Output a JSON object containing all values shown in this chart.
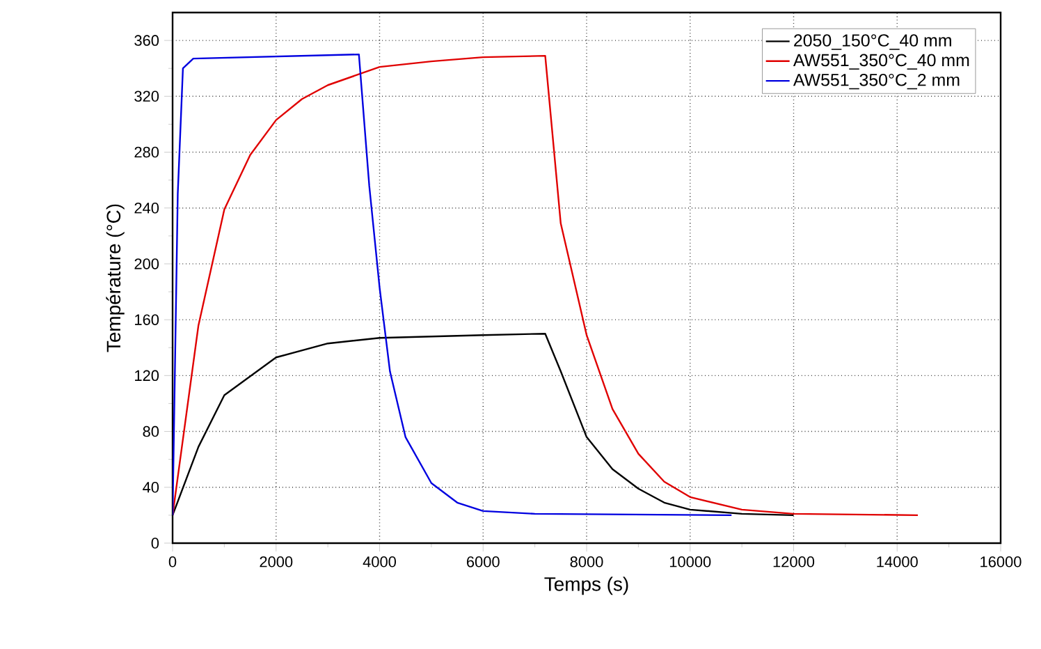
{
  "chart_data": {
    "type": "line",
    "xlabel": "Temps (s)",
    "ylabel": "Température (°C)",
    "xlim": [
      0,
      16000
    ],
    "ylim": [
      0,
      380
    ],
    "xticks": [
      0,
      2000,
      4000,
      6000,
      8000,
      10000,
      12000,
      14000,
      16000
    ],
    "yticks": [
      0,
      40,
      80,
      120,
      160,
      200,
      240,
      280,
      320,
      360
    ],
    "grid": true,
    "legend": "top right",
    "line_style": "solid",
    "marker": "none",
    "series": [
      {
        "name": "2050_150°C_40 mm",
        "color": "#000000",
        "x": [
          0,
          500,
          1000,
          2000,
          3000,
          4000,
          6000,
          7200,
          7500,
          8000,
          8500,
          9000,
          9500,
          10000,
          11000,
          12000
        ],
        "values": [
          20,
          69,
          106,
          133,
          143,
          147,
          149,
          150,
          123,
          76,
          53,
          39,
          29,
          24,
          21,
          20
        ]
      },
      {
        "name": "AW551_350°C_40 mm",
        "color": "#e00000",
        "x": [
          0,
          500,
          1000,
          1500,
          2000,
          2500,
          3000,
          4000,
          5000,
          6000,
          7200,
          7500,
          7750,
          8000,
          8500,
          9000,
          9500,
          10000,
          11000,
          12000,
          14400
        ],
        "values": [
          20,
          156,
          239,
          278,
          303,
          318,
          328,
          341,
          345,
          348,
          349,
          229,
          189,
          149,
          96,
          64,
          44,
          33,
          24,
          21,
          20
        ]
      },
      {
        "name": "AW551_350°C_2 mm",
        "color": "#0000e0",
        "x": [
          0,
          100,
          200,
          400,
          3600,
          3800,
          4000,
          4200,
          4500,
          5000,
          5500,
          6000,
          7000,
          10800
        ],
        "values": [
          20,
          250,
          340,
          347,
          350,
          256,
          183,
          123,
          76,
          43,
          29,
          23,
          21,
          20
        ]
      }
    ]
  }
}
